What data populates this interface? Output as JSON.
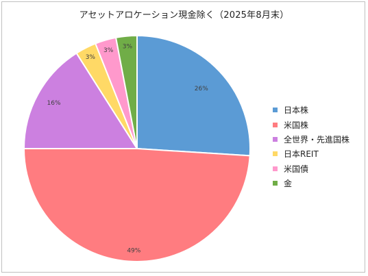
{
  "chart_data": {
    "type": "pie",
    "title": "アセットアロケーション現金除く（2025年8月末）",
    "categories": [
      "日本株",
      "米国株",
      "全世界・先進国株",
      "日本REIT",
      "米国債",
      "金"
    ],
    "values": [
      26,
      49,
      16,
      3,
      3,
      3
    ],
    "data_labels": [
      "26%",
      "49%",
      "16%",
      "3%",
      "3%",
      "3%"
    ],
    "colors": [
      "#5b9bd5",
      "#ff7c80",
      "#cc80e0",
      "#ffd966",
      "#ff99cc",
      "#70ad47"
    ],
    "legend_position": "right",
    "start_angle": "12 o'clock, clockwise"
  }
}
